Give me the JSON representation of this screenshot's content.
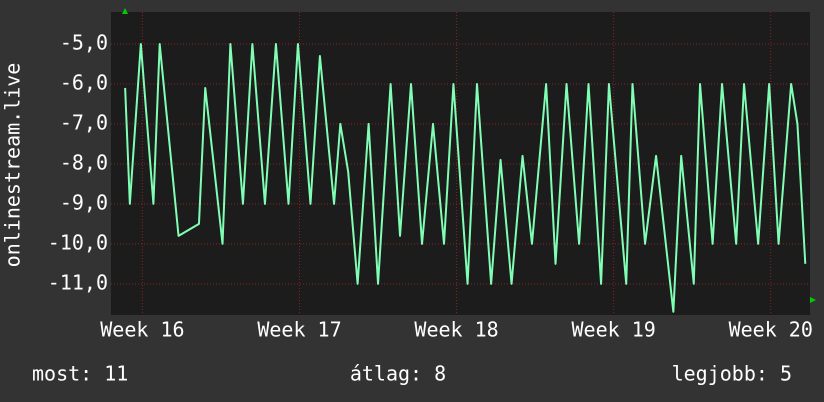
{
  "chart_data": {
    "type": "line",
    "y_label": "onlinestream.live",
    "x": [
      15.89,
      15.92,
      15.99,
      16.07,
      16.11,
      16.23,
      16.36,
      16.4,
      16.51,
      16.56,
      16.64,
      16.7,
      16.78,
      16.85,
      16.93,
      16.99,
      17.07,
      17.13,
      17.22,
      17.26,
      17.31,
      17.37,
      17.44,
      17.5,
      17.58,
      17.64,
      17.71,
      17.78,
      17.85,
      17.92,
      17.98,
      18.07,
      18.13,
      18.22,
      18.28,
      18.35,
      18.42,
      18.48,
      18.57,
      18.63,
      18.7,
      18.78,
      18.84,
      18.92,
      18.97,
      19.08,
      19.12,
      19.2,
      19.27,
      19.38,
      19.43,
      19.51,
      19.55,
      19.63,
      19.69,
      19.78,
      19.83,
      19.92,
      19.99,
      20.05,
      20.13,
      20.17,
      20.22
    ],
    "series": [
      {
        "name": "onlinestream.live",
        "color": "#80ffb4",
        "values": [
          -6.1,
          -9,
          -5,
          -9,
          -5,
          -9.8,
          -9.5,
          -6.1,
          -10,
          -5,
          -9,
          -5,
          -9,
          -5,
          -9,
          -5,
          -9,
          -5.3,
          -9,
          -7,
          -8.2,
          -11,
          -7,
          -11,
          -6,
          -9.8,
          -6,
          -10,
          -7,
          -10,
          -6,
          -11,
          -6,
          -11,
          -7.9,
          -11,
          -7.8,
          -10,
          -6,
          -10.5,
          -6,
          -10,
          -6,
          -11,
          -6,
          -11,
          -6,
          -10,
          -7.8,
          -11.7,
          -7.8,
          -11,
          -6,
          -10,
          -6,
          -10,
          -6,
          -10,
          -6,
          -10,
          -6,
          -7,
          -10.5
        ]
      }
    ],
    "xlim": [
      15.8,
      20.25
    ],
    "ylim": [
      -11.78,
      -4.2
    ],
    "xticks": [
      {
        "value": 16,
        "label": "Week 16"
      },
      {
        "value": 17,
        "label": "Week 17"
      },
      {
        "value": 18,
        "label": "Week 18"
      },
      {
        "value": 19,
        "label": "Week 19"
      },
      {
        "value": 20,
        "label": "Week 20"
      }
    ],
    "yticks": [
      {
        "value": -5,
        "label": "-5,0"
      },
      {
        "value": -6,
        "label": "-6,0"
      },
      {
        "value": -7,
        "label": "-7,0"
      },
      {
        "value": -8,
        "label": "-8,0"
      },
      {
        "value": -9,
        "label": "-9,0"
      },
      {
        "value": -10,
        "label": "-10,0"
      },
      {
        "value": -11,
        "label": "-11,0"
      }
    ],
    "grid": true,
    "footer": [
      "most: 11",
      "átlag: 8",
      "legjobb: 5"
    ]
  }
}
